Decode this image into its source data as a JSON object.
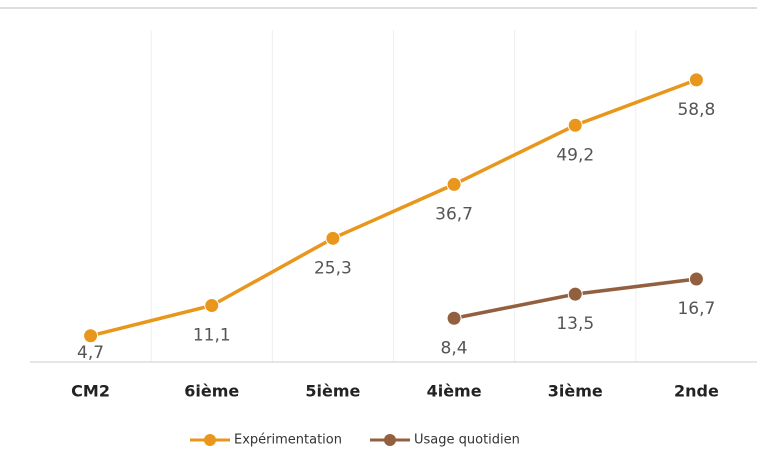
{
  "chart_data": {
    "type": "line",
    "categories": [
      "CM2",
      "6ième",
      "5ième",
      "4ième",
      "3ième",
      "2nde"
    ],
    "series": [
      {
        "name": "Expérimentation",
        "color": "#e8961c",
        "values": [
          4.7,
          11.1,
          25.3,
          36.7,
          49.2,
          58.8
        ],
        "value_labels": [
          "4,7",
          "11,1",
          "25,3",
          "36,7",
          "49,2",
          "58,8"
        ]
      },
      {
        "name": "Usage quotidien",
        "color": "#93603f",
        "values": [
          null,
          null,
          null,
          8.4,
          13.5,
          16.7
        ],
        "value_labels": [
          null,
          null,
          null,
          "8,4",
          "13,5",
          "16,7"
        ]
      }
    ],
    "grid": true
  }
}
